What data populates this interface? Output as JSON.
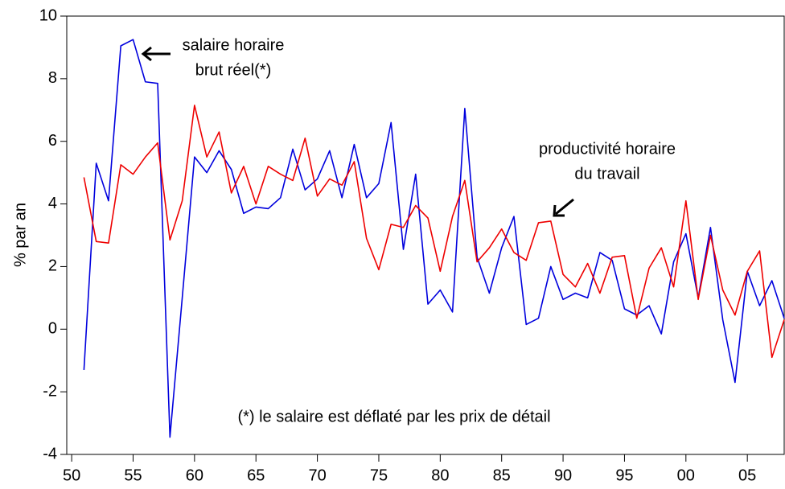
{
  "chart_data": {
    "type": "line",
    "ylabel": "% par an",
    "annotations": [
      {
        "lines": [
          "salaire horaire",
          "brut réel(*)"
        ]
      },
      {
        "lines": [
          "productivité horaire",
          "du travail"
        ]
      },
      {
        "lines": [
          "(*) le salaire est déflaté par les prix de détail"
        ]
      }
    ],
    "x": [
      1951,
      1952,
      1953,
      1954,
      1955,
      1956,
      1957,
      1958,
      1959,
      1960,
      1961,
      1962,
      1963,
      1964,
      1965,
      1966,
      1967,
      1968,
      1969,
      1970,
      1971,
      1972,
      1973,
      1974,
      1975,
      1976,
      1977,
      1978,
      1979,
      1980,
      1981,
      1982,
      1983,
      1984,
      1985,
      1986,
      1987,
      1988,
      1989,
      1990,
      1991,
      1992,
      1993,
      1994,
      1995,
      1996,
      1997,
      1998,
      1999,
      2000,
      2001,
      2002,
      2003,
      2004,
      2005,
      2006,
      2007,
      2008
    ],
    "series": [
      {
        "color": "#0000dd",
        "values": [
          -1.3,
          5.3,
          4.1,
          9.05,
          9.25,
          7.9,
          7.85,
          -3.45,
          1.0,
          5.5,
          5.0,
          5.7,
          5.1,
          3.7,
          3.9,
          3.85,
          4.2,
          5.75,
          4.45,
          4.8,
          5.7,
          4.2,
          5.9,
          4.2,
          4.65,
          6.6,
          2.55,
          4.95,
          0.8,
          1.25,
          0.55,
          7.05,
          2.3,
          1.15,
          2.6,
          3.6,
          0.15,
          0.35,
          2.0,
          0.95,
          1.15,
          1.0,
          2.45,
          2.2,
          0.65,
          0.45,
          0.75,
          -0.15,
          2.15,
          3.05,
          1.0,
          3.25,
          0.3,
          -1.7,
          1.85,
          0.75,
          1.55,
          0.35
        ]
      },
      {
        "color": "#ee0000",
        "values": [
          4.85,
          2.8,
          2.75,
          5.25,
          4.95,
          5.5,
          5.95,
          2.85,
          4.1,
          7.15,
          5.5,
          6.3,
          4.35,
          5.2,
          4.0,
          5.2,
          4.95,
          4.75,
          6.1,
          4.25,
          4.8,
          4.6,
          5.35,
          2.9,
          1.9,
          3.35,
          3.25,
          3.95,
          3.55,
          1.85,
          3.6,
          4.75,
          2.15,
          2.6,
          3.2,
          2.45,
          2.2,
          3.4,
          3.45,
          1.75,
          1.35,
          2.1,
          1.15,
          2.3,
          2.35,
          0.35,
          1.95,
          2.6,
          1.35,
          4.1,
          0.95,
          3.0,
          1.25,
          0.45,
          1.85,
          2.5,
          -0.9,
          0.3
        ]
      }
    ],
    "xlim": [
      1949.6,
      2008
    ],
    "xticks": [
      {
        "value": 1950,
        "label": "50"
      },
      {
        "value": 1955,
        "label": "55"
      },
      {
        "value": 1960,
        "label": "60"
      },
      {
        "value": 1965,
        "label": "65"
      },
      {
        "value": 1970,
        "label": "70"
      },
      {
        "value": 1975,
        "label": "75"
      },
      {
        "value": 1980,
        "label": "80"
      },
      {
        "value": 1985,
        "label": "85"
      },
      {
        "value": 1990,
        "label": "90"
      },
      {
        "value": 1995,
        "label": "95"
      },
      {
        "value": 2000,
        "label": "00"
      },
      {
        "value": 2005,
        "label": "05"
      }
    ],
    "ylim": [
      -4,
      10
    ],
    "yticks": [
      -4,
      -2,
      0,
      2,
      4,
      6,
      8,
      10
    ]
  }
}
